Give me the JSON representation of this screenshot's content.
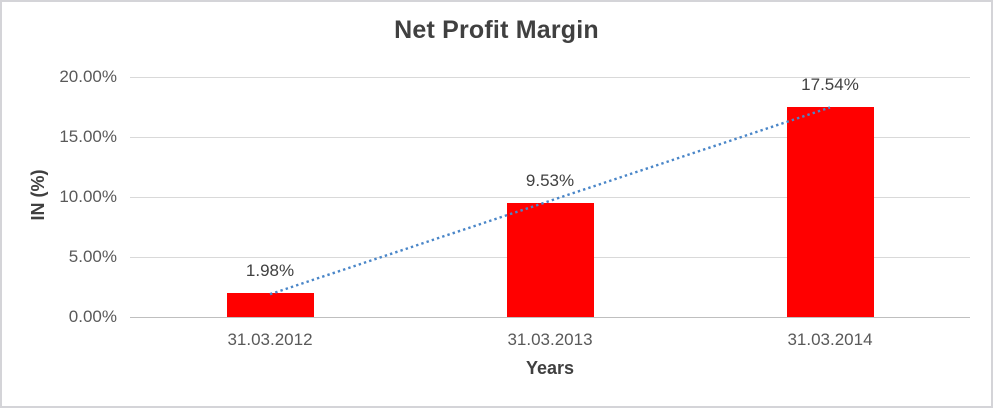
{
  "chart_data": {
    "type": "bar",
    "title": "Net Profit Margin",
    "xlabel": "Years",
    "ylabel": "IN (%)",
    "categories": [
      "31.03.2012",
      "31.03.2013",
      "31.03.2014"
    ],
    "series": [
      {
        "name": "Net Profit Margin",
        "values": [
          1.98,
          9.53,
          17.54
        ],
        "data_labels": [
          "1.98%",
          "9.53%",
          "17.54%"
        ]
      }
    ],
    "trendline": {
      "type": "linear",
      "style": "dotted",
      "endpoint_values": [
        1.9,
        17.46
      ]
    },
    "ylim": [
      0,
      20
    ],
    "yticks": [
      {
        "value": 0,
        "label": "0.00%"
      },
      {
        "value": 5,
        "label": "5.00%"
      },
      {
        "value": 10,
        "label": "10.00%"
      },
      {
        "value": 15,
        "label": "15.00%"
      },
      {
        "value": 20,
        "label": "20.00%"
      }
    ],
    "grid": true,
    "legend_position": "none",
    "colors": {
      "bar": "#FF0000",
      "trendline": "#4A86C8",
      "gridline": "#D9D9D9",
      "axis_line": "#BFBFBF",
      "title_text": "#404040",
      "tick_text": "#595959",
      "border": "#D4D4D8"
    }
  }
}
